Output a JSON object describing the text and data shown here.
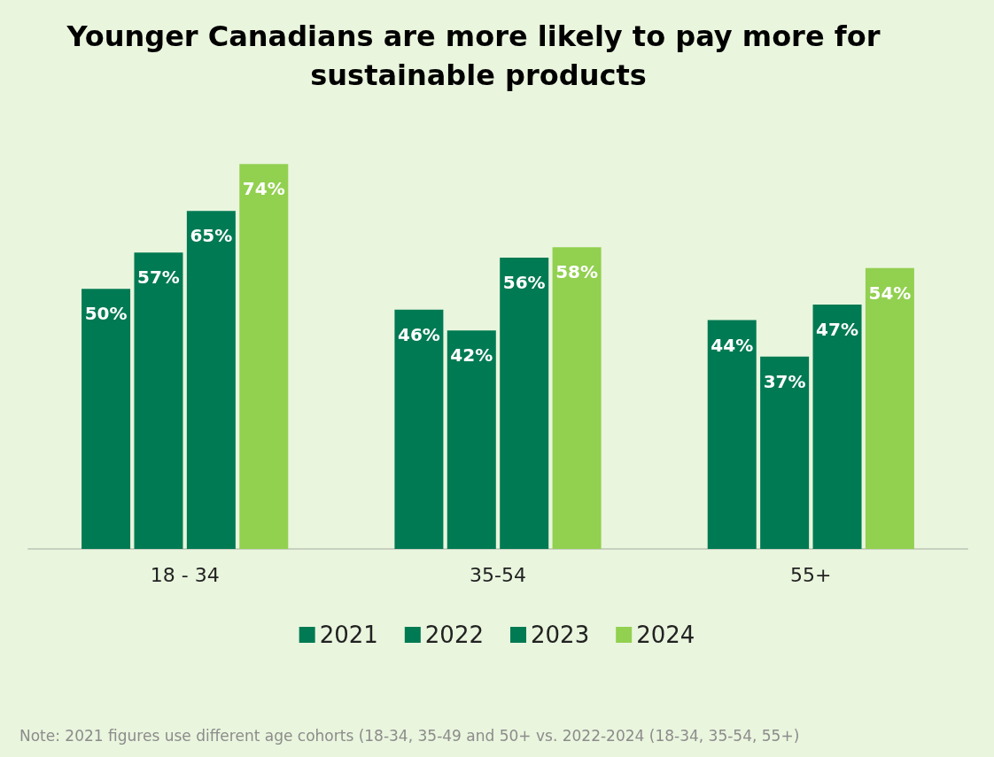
{
  "chart_data": {
    "type": "bar",
    "title": "Younger Canadians are more likely to pay more for sustainable products",
    "categories": [
      "18 - 34",
      "35-54",
      "55+"
    ],
    "series": [
      {
        "name": "2021",
        "color": "#007a53",
        "values": [
          50,
          46,
          44
        ],
        "value_labels": [
          "50%",
          "46%",
          "44%"
        ]
      },
      {
        "name": "2022",
        "color": "#007a53",
        "values": [
          57,
          42,
          37
        ],
        "value_labels": [
          "57%",
          "42%",
          "37%"
        ]
      },
      {
        "name": "2023",
        "color": "#007a53",
        "values": [
          65,
          56,
          47
        ],
        "value_labels": [
          "65%",
          "56%",
          "47%"
        ]
      },
      {
        "name": "2024",
        "color": "#92d050",
        "values": [
          74,
          58,
          54
        ],
        "value_labels": [
          "74%",
          "58%",
          "54%"
        ]
      }
    ],
    "legend": "bottom",
    "annotations": [
      "Note: 2021 figures use different age cohorts (18-34, 35-49 and 50+ vs. 2022-2024 (18-34, 35-54, 55+)"
    ]
  }
}
